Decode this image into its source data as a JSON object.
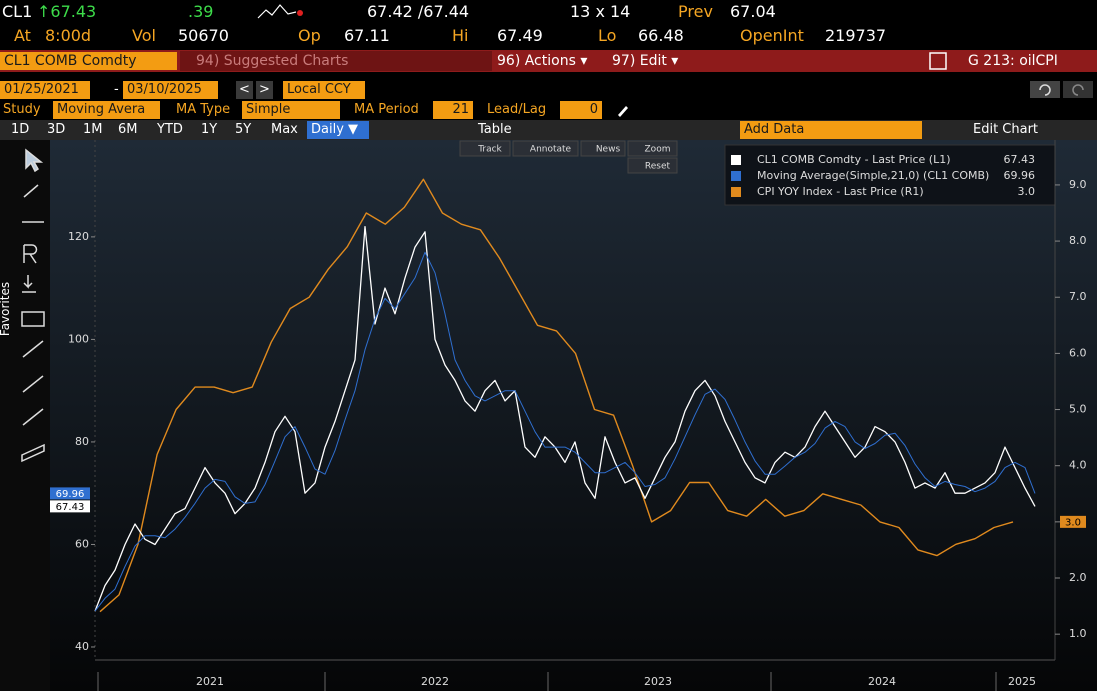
{
  "quote": {
    "ticker": "CL1",
    "last": "↑67.43",
    "change": ".39",
    "bid_ask": "67.42 /67.44",
    "size": "13 x 14",
    "prev_label": "Prev",
    "prev": "67.04",
    "at_label": "At",
    "time": "8:00d",
    "vol_label": "Vol",
    "vol": "50670",
    "open_label": "Op",
    "open": "67.11",
    "hi_label": "Hi",
    "hi": "67.49",
    "lo_label": "Lo",
    "lo": "66.48",
    "oi_label": "OpenInt",
    "oi": "219737"
  },
  "menu": {
    "security": "CL1 COMB Comdty",
    "suggested": "94) Suggested Charts",
    "actions": "96) Actions ▾",
    "edit": "97) Edit ▾",
    "page": "G 213: oilCPI"
  },
  "range": {
    "start": "01/25/2021",
    "sep": "-",
    "end": "03/10/2025",
    "prev": "<",
    "next": ">",
    "currency": "Local CCY"
  },
  "study": {
    "label": "Study",
    "value": "Moving Avera",
    "ma_type_label": "MA Type",
    "ma_type": "Simple",
    "ma_period_label": "MA Period",
    "ma_period": "21",
    "lead_lag_label": "Lead/Lag",
    "lead_lag": "0"
  },
  "toolbar": {
    "periods": [
      "1D",
      "3D",
      "1M",
      "6M",
      "YTD",
      "1Y",
      "5Y",
      "Max"
    ],
    "frequency": "Daily ▼",
    "table": "Table",
    "add_data": "Add Data",
    "edit_chart": "Edit Chart"
  },
  "chart_tools": [
    "Track",
    "Annotate",
    "News",
    "Zoom",
    "Reset"
  ],
  "sidebar": {
    "favorites": "Favorites"
  },
  "chart_data": {
    "type": "line",
    "x_labels": [
      "2021",
      "2022",
      "2023",
      "2024",
      "2025"
    ],
    "ylim": [
      37.46,
      138.9
    ],
    "yticks": [
      40,
      60,
      80,
      100,
      120
    ],
    "y2lim": [
      0.54,
      9.8
    ],
    "y2ticks": [
      {
        "value": 1,
        "label": "1.0"
      },
      {
        "value": 2,
        "label": "2.0"
      },
      {
        "value": 3,
        "label": "3.0"
      },
      {
        "value": 4,
        "label": "4.0"
      },
      {
        "value": 5,
        "label": "5.0"
      },
      {
        "value": 6,
        "label": "6.0"
      },
      {
        "value": 7,
        "label": "7.0"
      },
      {
        "value": 8,
        "label": "8.0"
      },
      {
        "value": 9,
        "label": "9.0"
      }
    ],
    "series": [
      {
        "name": "CL1 COMB Comdty - Last Price (L1)",
        "color": "#ffffff",
        "last_label": "67.43",
        "values": [
          47,
          52,
          55,
          60,
          64,
          61,
          60,
          63,
          66,
          67,
          71,
          75,
          72,
          70,
          66,
          68,
          71,
          76,
          82,
          85,
          82,
          70,
          72,
          79,
          84,
          90,
          96,
          122,
          103,
          110,
          105,
          112,
          118,
          121,
          100,
          95,
          92,
          88,
          86,
          90,
          92,
          88,
          90,
          79,
          77,
          81,
          79,
          76,
          80,
          72,
          69,
          81,
          76,
          72,
          73,
          69,
          73,
          77,
          80,
          86,
          90,
          92,
          89,
          84,
          80,
          76,
          73,
          72,
          76,
          78,
          77,
          79,
          83,
          86,
          83,
          80,
          77,
          79,
          83,
          82,
          80,
          76,
          71,
          72,
          71,
          74,
          70,
          70,
          71,
          72,
          74,
          79,
          75,
          71,
          67.43
        ]
      },
      {
        "name": "Moving Average(Simple,21,0) (CL1 COMB)",
        "color": "#2f6fd0",
        "last_label": "69.96",
        "values": [
          47,
          49.5,
          51.3,
          55.7,
          59.7,
          61.7,
          61.7,
          61.3,
          63,
          65.3,
          68,
          71,
          72.7,
          72.3,
          69.3,
          68,
          68.3,
          71.7,
          76.3,
          81,
          83,
          79,
          74.7,
          73.7,
          78.3,
          84.3,
          90,
          98,
          104,
          108,
          106,
          109,
          112,
          117,
          113,
          105,
          96,
          92,
          89,
          88,
          89,
          90,
          90,
          86,
          82,
          79,
          79,
          79,
          78,
          76,
          74,
          74,
          75,
          76,
          74,
          71.3,
          71.7,
          73,
          76.7,
          81,
          85.3,
          89.3,
          90.3,
          88.3,
          84.3,
          80,
          76.3,
          73.7,
          73.7,
          75.3,
          77,
          78,
          79.7,
          82.7,
          84,
          83,
          80,
          78.7,
          79.7,
          81.3,
          81.7,
          79.3,
          75.7,
          73,
          71.3,
          72.3,
          71.7,
          71.3,
          70.3,
          71,
          72.3,
          75,
          76,
          75,
          69.96
        ]
      },
      {
        "name": "CPI YOY Index - Last Price (R1)",
        "color": "#e08a1e",
        "axis": "y2",
        "last_label": "3.0",
        "values": [
          1.4,
          1.7,
          2.6,
          4.2,
          5.0,
          5.4,
          5.4,
          5.3,
          5.4,
          6.2,
          6.8,
          7.0,
          7.5,
          7.9,
          8.5,
          8.3,
          8.6,
          9.1,
          8.5,
          8.3,
          8.2,
          7.7,
          7.1,
          6.5,
          6.4,
          6.0,
          5.0,
          4.9,
          4.0,
          3.0,
          3.2,
          3.7,
          3.7,
          3.2,
          3.1,
          3.4,
          3.1,
          3.2,
          3.5,
          3.4,
          3.3,
          3.0,
          2.9,
          2.5,
          2.4,
          2.6,
          2.7,
          2.9,
          3.0
        ]
      }
    ]
  }
}
